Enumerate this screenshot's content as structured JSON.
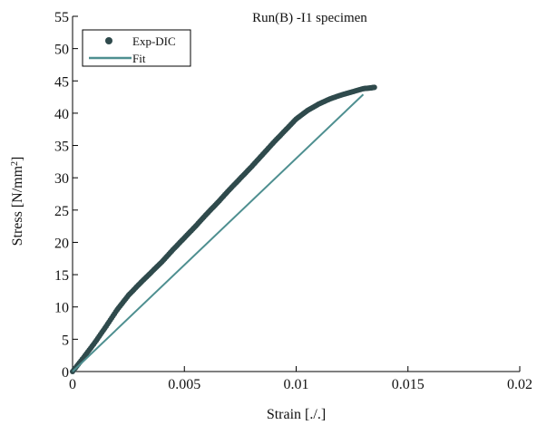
{
  "chart_data": {
    "type": "scatter",
    "title": "Run(B) -I1 specimen",
    "xlabel": "Strain [./.]",
    "ylabel_main": "Stress [N/mm",
    "ylabel_sup": "2",
    "ylabel_end": "]",
    "xlim": [
      0,
      0.02
    ],
    "ylim": [
      0,
      55
    ],
    "x_ticks": [
      0,
      0.005,
      0.01,
      0.015,
      0.02
    ],
    "x_tick_labels": [
      "0",
      "0.005",
      "0.01",
      "0.015",
      "0.02"
    ],
    "y_ticks": [
      0,
      5,
      10,
      15,
      20,
      25,
      30,
      35,
      40,
      45,
      50,
      55
    ],
    "y_tick_labels": [
      "0",
      "5",
      "10",
      "15",
      "20",
      "25",
      "30",
      "35",
      "40",
      "45",
      "50",
      "55"
    ],
    "grid": false,
    "legend_position": "top-left",
    "series": [
      {
        "name": "Exp-DIC",
        "kind": "markers",
        "color": "#2f4a4c",
        "x": [
          0,
          0.0005,
          0.001,
          0.0015,
          0.002,
          0.0025,
          0.003,
          0.0035,
          0.004,
          0.0045,
          0.005,
          0.0055,
          0.006,
          0.0065,
          0.007,
          0.0075,
          0.008,
          0.0085,
          0.009,
          0.0095,
          0.01,
          0.0105,
          0.011,
          0.0115,
          0.012,
          0.0125,
          0.013,
          0.0133,
          0.0135
        ],
        "y": [
          0,
          2.2,
          4.5,
          7.0,
          9.6,
          11.8,
          13.6,
          15.3,
          17.0,
          18.9,
          20.7,
          22.5,
          24.4,
          26.2,
          28.1,
          29.9,
          31.7,
          33.6,
          35.5,
          37.3,
          39.1,
          40.4,
          41.4,
          42.2,
          42.8,
          43.3,
          43.8,
          43.9,
          44.0
        ]
      },
      {
        "name": "Fit",
        "kind": "line",
        "color": "#4e8f90",
        "x": [
          0,
          0.013
        ],
        "y": [
          0,
          42.9
        ]
      }
    ]
  }
}
